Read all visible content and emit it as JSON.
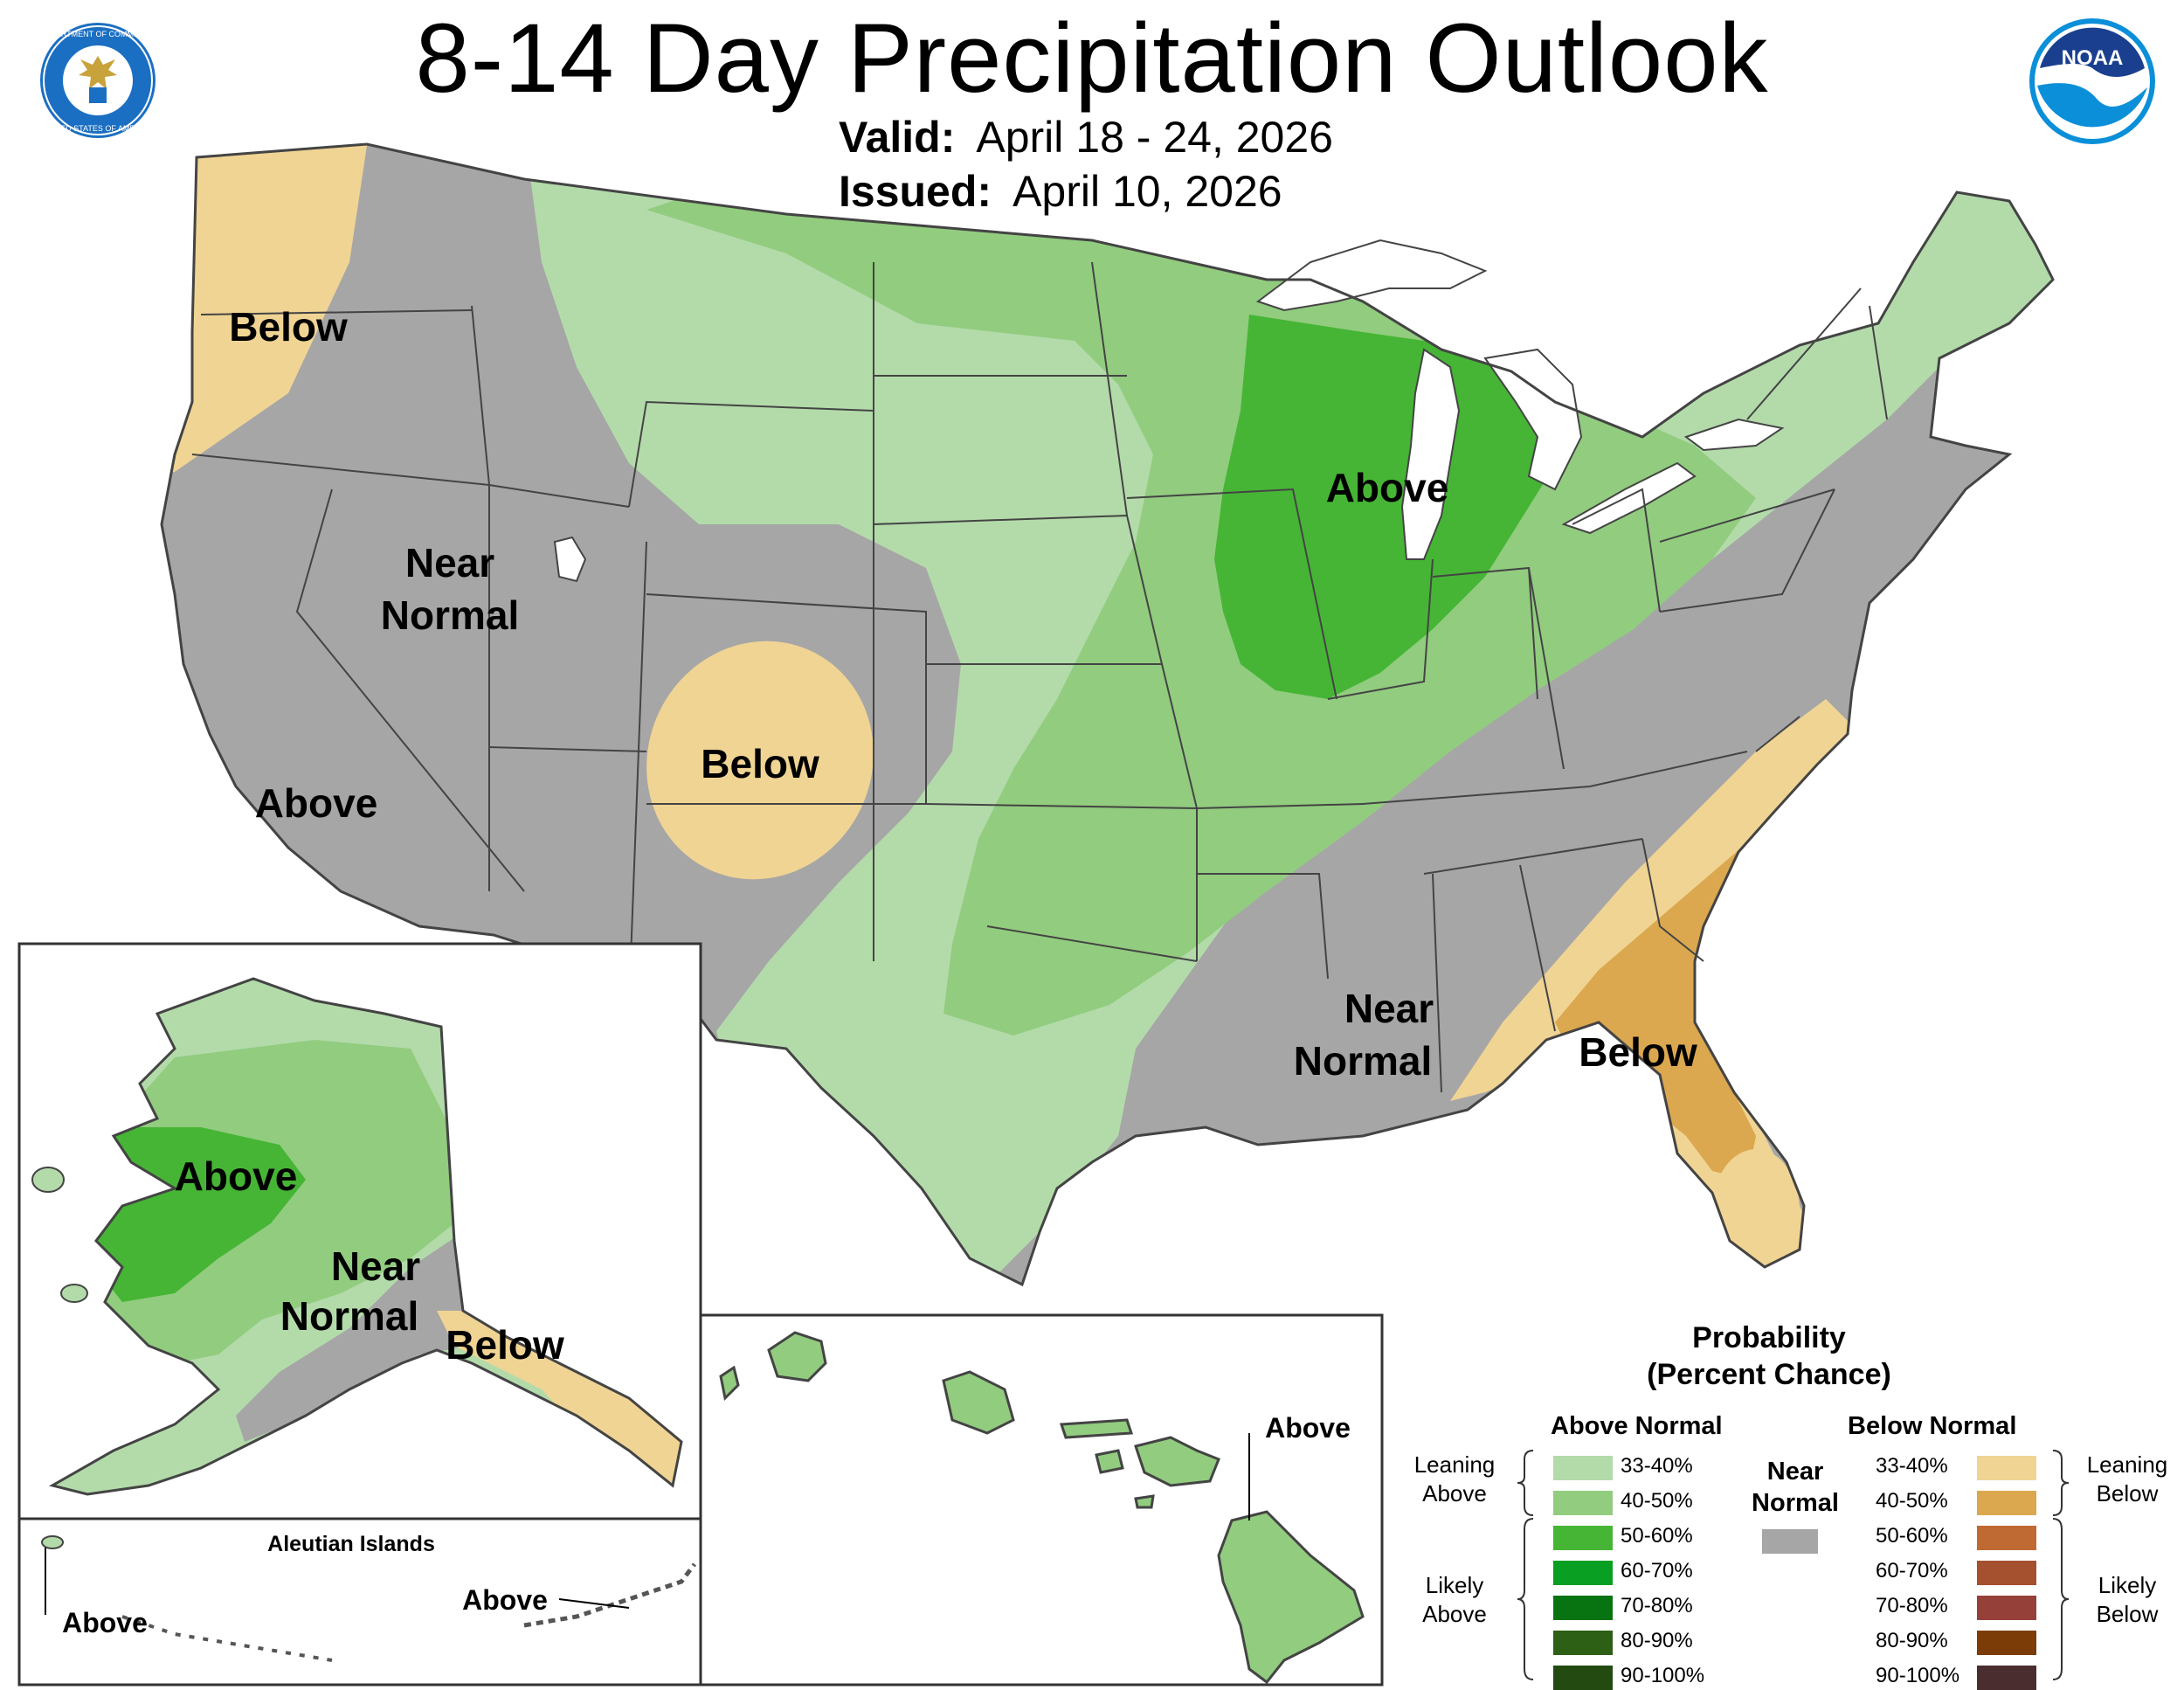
{
  "header": {
    "title": "8-14 Day Precipitation Outlook",
    "valid_label": "Valid:",
    "valid_value": "April 18 - 24, 2026",
    "issued_label": "Issued:",
    "issued_value": "April 10, 2026"
  },
  "seals": {
    "commerce": {
      "icon": "department-of-commerce-seal-icon",
      "top_text": "DEPARTMENT OF COMMERCE",
      "bottom_text": "UNITED STATES OF AMERICA"
    },
    "noaa": {
      "icon": "noaa-logo-icon",
      "text": "NOAA"
    }
  },
  "colors": {
    "near_normal": "#a6a6a6",
    "above_33_40": "#b3dbaa",
    "above_40_50": "#92cc7f",
    "above_50_60": "#46b535",
    "above_60_70": "#099f22",
    "above_70_80": "#087411",
    "above_80_90": "#2d5f14",
    "above_90_100": "#234a10",
    "below_33_40": "#f0d494",
    "below_40_50": "#dba84f",
    "below_50_60": "#c06a33",
    "below_60_70": "#a5502e",
    "below_70_80": "#954139",
    "below_80_90": "#7b3c08",
    "below_90_100": "#4a2e2f",
    "water": "#ffffff",
    "outline": "#444444"
  },
  "map_labels": {
    "nw_below": "Below",
    "west_near_normal_1": "Near",
    "west_near_normal_2": "Normal",
    "co_below": "Below",
    "ca_above": "Above",
    "mw_above": "Above",
    "se_near_normal_1": "Near",
    "se_near_normal_2": "Normal",
    "se_below": "Below",
    "ak_above": "Above",
    "ak_near_normal_1": "Near",
    "ak_near_normal_2": "Normal",
    "ak_below": "Below",
    "aleutian_title": "Aleutian Islands",
    "aleutian_above_west": "Above",
    "aleutian_above_east": "Above",
    "hawaii_above": "Above"
  },
  "legend": {
    "title_1": "Probability",
    "title_2": "(Percent Chance)",
    "above_heading": "Above Normal",
    "below_heading": "Below Normal",
    "near_heading_1": "Near",
    "near_heading_2": "Normal",
    "leaning_above_1": "Leaning",
    "leaning_above_2": "Above",
    "likely_above_1": "Likely",
    "likely_above_2": "Above",
    "leaning_below_1": "Leaning",
    "leaning_below_2": "Below",
    "likely_below_1": "Likely",
    "likely_below_2": "Below",
    "above_categories": [
      "33-40%",
      "40-50%",
      "50-60%",
      "60-70%",
      "70-80%",
      "80-90%",
      "90-100%"
    ],
    "below_categories": [
      "33-40%",
      "40-50%",
      "50-60%",
      "60-70%",
      "70-80%",
      "80-90%",
      "90-100%"
    ]
  }
}
